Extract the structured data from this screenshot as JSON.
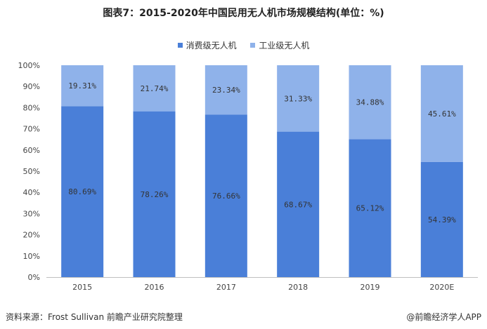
{
  "page": {
    "source_text": "资料来源：Frost Sullivan 前瞻产业研究院整理",
    "brand_text": "@前瞻经济学人APP"
  },
  "chart_data": {
    "type": "bar",
    "stacked": true,
    "title": "图表7：2015-2020年中国民用无人机市场规模结构(单位：%)",
    "categories": [
      "2015",
      "2016",
      "2017",
      "2018",
      "2019",
      "2020E"
    ],
    "series": [
      {
        "name": "消费级无人机",
        "values": [
          80.69,
          78.26,
          76.66,
          68.67,
          65.12,
          54.39
        ],
        "labels": [
          "80.69%",
          "78.26%",
          "76.66%",
          "68.67%",
          "65.12%",
          "54.39%"
        ],
        "color": "#4a7fd8"
      },
      {
        "name": "工业级无人机",
        "values": [
          19.31,
          21.74,
          23.34,
          31.33,
          34.88,
          45.61
        ],
        "labels": [
          "19.31%",
          "21.74%",
          "23.34%",
          "31.33%",
          "34.88%",
          "45.61%"
        ],
        "color": "#8fb2ea"
      }
    ],
    "yticks": [
      "0%",
      "10%",
      "20%",
      "30%",
      "40%",
      "50%",
      "60%",
      "70%",
      "80%",
      "90%",
      "100%"
    ],
    "ylim": [
      0,
      100
    ],
    "xlabel": "",
    "ylabel": "",
    "legend_position": "top-center",
    "grid": false
  }
}
